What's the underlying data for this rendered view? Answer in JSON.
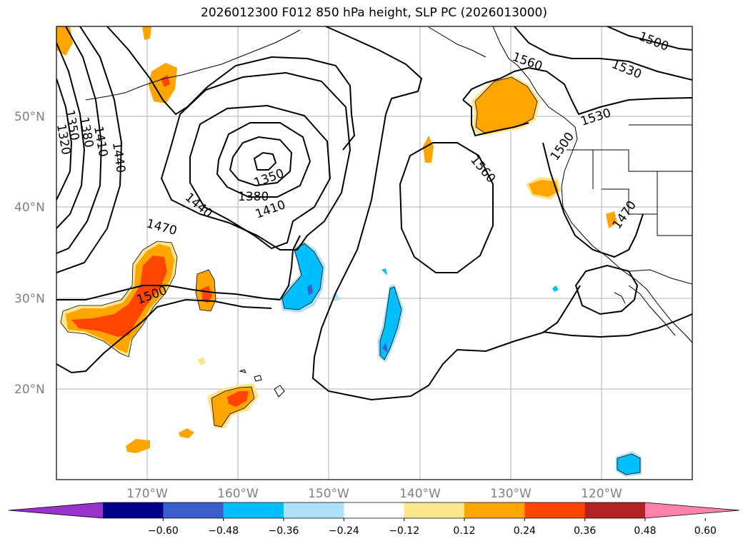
{
  "title": "2026012300 F012 850 hPa height, SLP PC (2026013000)",
  "lat_labels": [
    "50°N",
    "40°N",
    "30°N",
    "20°N"
  ],
  "lon_labels": [
    "170°W",
    "160°W",
    "150°W",
    "140°W",
    "130°W",
    "120°W"
  ],
  "contour_labels": [
    "1320",
    "1350",
    "1380",
    "1410",
    "1440",
    "1350",
    "1380",
    "1410",
    "1440",
    "1470",
    "1500",
    "1560",
    "1530",
    "1500",
    "1560",
    "1530",
    "1500",
    "1470"
  ],
  "colorbar": {
    "ticks": [
      "−0.60",
      "−0.48",
      "−0.36",
      "−0.24",
      "−0.12",
      "0.12",
      "0.24",
      "0.36",
      "0.48",
      "0.60"
    ],
    "colors": [
      "#9932cc",
      "#00008b",
      "#3a5fcd",
      "#00bfff",
      "#aee0f8",
      "#ffffff",
      "#ffe68c",
      "#ffa500",
      "#ff4500",
      "#b22222",
      "#ff82ab"
    ]
  }
}
